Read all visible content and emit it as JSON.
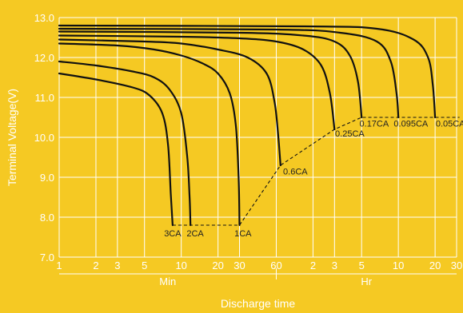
{
  "colors": {
    "background": "#F5C923",
    "grid": "#ffffff",
    "curve": "#111111",
    "text": "#ffffff",
    "label": "#222222"
  },
  "chart_data": {
    "type": "line",
    "title": "",
    "ylabel": "Terminal Voltage(V)",
    "xlabel": "Discharge   time",
    "ylim": [
      7.0,
      13.0
    ],
    "y_ticks": [
      "7.0",
      "8.0",
      "9.0",
      "10.0",
      "11.0",
      "12.0",
      "13.0"
    ],
    "x_scale": "log",
    "x_units": [
      "Min",
      "Hr"
    ],
    "x_tick_labels": [
      {
        "label": "1",
        "minutes": 1
      },
      {
        "label": "2",
        "minutes": 2
      },
      {
        "label": "3",
        "minutes": 3
      },
      {
        "label": "5",
        "minutes": 5
      },
      {
        "label": "10",
        "minutes": 10
      },
      {
        "label": "20",
        "minutes": 20
      },
      {
        "label": "30",
        "minutes": 30
      },
      {
        "label": "60",
        "minutes": 60
      },
      {
        "label": "2",
        "minutes": 120
      },
      {
        "label": "3",
        "minutes": 180
      },
      {
        "label": "5",
        "minutes": 300
      },
      {
        "label": "10",
        "minutes": 600
      },
      {
        "label": "20",
        "minutes": 1200
      },
      {
        "label": "30",
        "minutes": 1800
      }
    ],
    "grid": true,
    "series": [
      {
        "name": "3CA",
        "points": [
          [
            1,
            11.6
          ],
          [
            2,
            11.45
          ],
          [
            4,
            11.25
          ],
          [
            5.5,
            11.05
          ],
          [
            7,
            10.6
          ],
          [
            7.8,
            9.8
          ],
          [
            8.2,
            8.6
          ],
          [
            8.5,
            7.8
          ]
        ]
      },
      {
        "name": "2CA",
        "points": [
          [
            1,
            11.9
          ],
          [
            2,
            11.8
          ],
          [
            4,
            11.65
          ],
          [
            6,
            11.5
          ],
          [
            8,
            11.2
          ],
          [
            10,
            10.6
          ],
          [
            11.2,
            9.5
          ],
          [
            11.7,
            8.5
          ],
          [
            11.9,
            7.8
          ]
        ]
      },
      {
        "name": "1CA",
        "points": [
          [
            1,
            12.35
          ],
          [
            3,
            12.3
          ],
          [
            6,
            12.2
          ],
          [
            10,
            12.05
          ],
          [
            15,
            11.85
          ],
          [
            20,
            11.6
          ],
          [
            25,
            11.1
          ],
          [
            28,
            10.3
          ],
          [
            29.5,
            9.0
          ],
          [
            30,
            7.8
          ]
        ]
      },
      {
        "name": "0.6CA",
        "points": [
          [
            1,
            12.45
          ],
          [
            5,
            12.4
          ],
          [
            10,
            12.35
          ],
          [
            20,
            12.2
          ],
          [
            35,
            12.0
          ],
          [
            50,
            11.6
          ],
          [
            58,
            10.9
          ],
          [
            62,
            10.1
          ],
          [
            65,
            9.3
          ]
        ]
      },
      {
        "name": "0.25CA",
        "points": [
          [
            1,
            12.55
          ],
          [
            10,
            12.52
          ],
          [
            30,
            12.48
          ],
          [
            60,
            12.4
          ],
          [
            100,
            12.2
          ],
          [
            140,
            11.8
          ],
          [
            165,
            11.1
          ],
          [
            180,
            10.2
          ]
        ]
      },
      {
        "name": "0.17CA",
        "points": [
          [
            1,
            12.65
          ],
          [
            30,
            12.62
          ],
          [
            100,
            12.55
          ],
          [
            180,
            12.4
          ],
          [
            240,
            12.05
          ],
          [
            280,
            11.4
          ],
          [
            300,
            10.5
          ]
        ]
      },
      {
        "name": "0.095CA",
        "points": [
          [
            1,
            12.72
          ],
          [
            60,
            12.7
          ],
          [
            200,
            12.62
          ],
          [
            400,
            12.4
          ],
          [
            520,
            11.9
          ],
          [
            580,
            11.1
          ],
          [
            600,
            10.5
          ]
        ]
      },
      {
        "name": "0.05CA",
        "points": [
          [
            1,
            12.8
          ],
          [
            100,
            12.78
          ],
          [
            400,
            12.72
          ],
          [
            800,
            12.45
          ],
          [
            1050,
            12.0
          ],
          [
            1150,
            11.3
          ],
          [
            1200,
            10.5
          ]
        ]
      }
    ],
    "cutoff_line": [
      [
        8.5,
        7.8
      ],
      [
        30,
        7.8
      ],
      [
        65,
        9.3
      ],
      [
        180,
        10.2
      ],
      [
        300,
        10.5
      ],
      [
        1900,
        10.5
      ]
    ],
    "curve_labels": [
      {
        "text": "3CA",
        "x": 8.5,
        "y": 7.6
      },
      {
        "text": "2CA",
        "x": 13,
        "y": 7.6
      },
      {
        "text": "1CA",
        "x": 32,
        "y": 7.6
      },
      {
        "text": "0.6CA",
        "x": 86,
        "y": 9.15
      },
      {
        "text": "0.25CA",
        "x": 240,
        "y": 10.1
      },
      {
        "text": "0.17CA",
        "x": 380,
        "y": 10.35
      },
      {
        "text": "0.095CA",
        "x": 760,
        "y": 10.35
      },
      {
        "text": "0.05CA",
        "x": 1600,
        "y": 10.35
      }
    ]
  }
}
